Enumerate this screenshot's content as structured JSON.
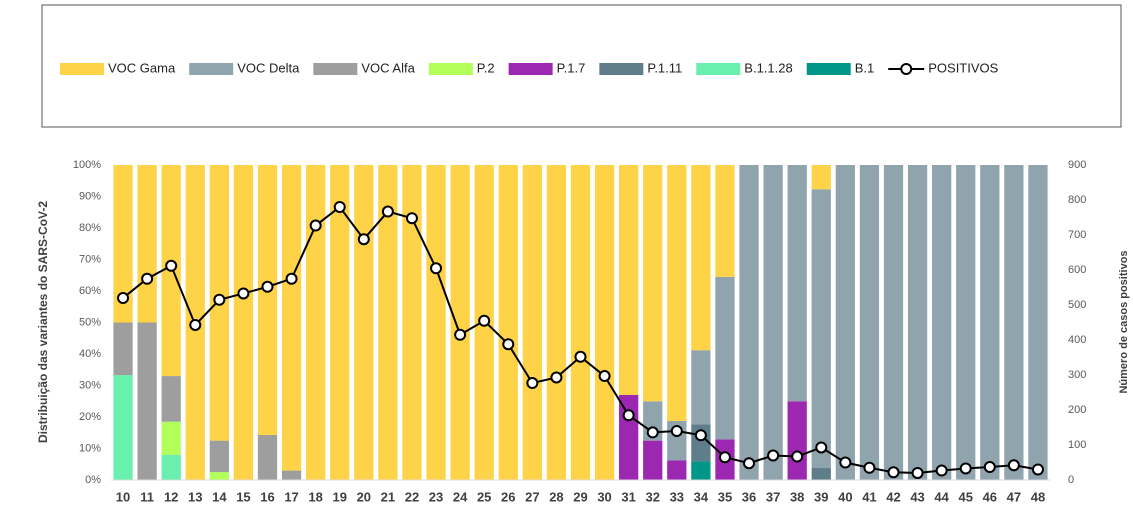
{
  "chart_data": {
    "type": "stacked_bar_line",
    "ylabel": "Distribuição das variantes do SARS-CoV-2",
    "y2label": "Número de casos positivos",
    "categories": [
      "10",
      "11",
      "12",
      "13",
      "14",
      "15",
      "16",
      "17",
      "18",
      "19",
      "20",
      "21",
      "22",
      "23",
      "24",
      "25",
      "26",
      "27",
      "28",
      "29",
      "30",
      "31",
      "32",
      "33",
      "34",
      "35",
      "36",
      "37",
      "38",
      "39",
      "40",
      "41",
      "42",
      "43",
      "44",
      "45",
      "46",
      "47",
      "48"
    ],
    "series": [
      {
        "name": "VOC Gama",
        "color": "#ffd347",
        "values": [
          50,
          50,
          67,
          100,
          87.5,
          100,
          85.7,
          97,
          100,
          100,
          100,
          100,
          100,
          100,
          100,
          100,
          100,
          100,
          100,
          100,
          100,
          73,
          75,
          81.25,
          58.8,
          35.5,
          0,
          0,
          0,
          7.7,
          0,
          0,
          0,
          0,
          0,
          0,
          0,
          0,
          0
        ]
      },
      {
        "name": "VOC Delta",
        "color": "#90a4ae",
        "values": [
          0,
          0,
          0,
          0,
          0,
          0,
          0,
          0,
          0,
          0,
          0,
          0,
          0,
          0,
          0,
          0,
          0,
          0,
          0,
          0,
          0,
          0,
          12.5,
          12.5,
          23.5,
          51.6,
          100,
          100,
          75,
          88.5,
          100,
          100,
          100,
          100,
          100,
          100,
          100,
          100,
          100
        ]
      },
      {
        "name": "VOC Alfa",
        "color": "#9e9e9e",
        "values": [
          16.7,
          50,
          14.5,
          0,
          10,
          0,
          14.3,
          3,
          0,
          0,
          0,
          0,
          0,
          0,
          0,
          0,
          0,
          0,
          0,
          0,
          0,
          0,
          0,
          0,
          0,
          0,
          0,
          0,
          0,
          0,
          0,
          0,
          0,
          0,
          0,
          0,
          0,
          0,
          0
        ]
      },
      {
        "name": "P.2",
        "color": "#b2ff59",
        "values": [
          0,
          0,
          10.5,
          0,
          2.5,
          0,
          0,
          0,
          0,
          0,
          0,
          0,
          0,
          0,
          0,
          0,
          0,
          0,
          0,
          0,
          0,
          0,
          0,
          0,
          0,
          0,
          0,
          0,
          0,
          0,
          0,
          0,
          0,
          0,
          0,
          0,
          0,
          0,
          0
        ]
      },
      {
        "name": "P.1.7",
        "color": "#9c27b0",
        "values": [
          0,
          0,
          0,
          0,
          0,
          0,
          0,
          0,
          0,
          0,
          0,
          0,
          0,
          0,
          0,
          0,
          0,
          0,
          0,
          0,
          0,
          27,
          12.5,
          6.25,
          0,
          12.9,
          0,
          0,
          25,
          0,
          0,
          0,
          0,
          0,
          0,
          0,
          0,
          0,
          0
        ]
      },
      {
        "name": "P.1.11",
        "color": "#607d8b",
        "values": [
          0,
          0,
          0,
          0,
          0,
          0,
          0,
          0,
          0,
          0,
          0,
          0,
          0,
          0,
          0,
          0,
          0,
          0,
          0,
          0,
          0,
          0,
          0,
          0,
          11.8,
          0,
          0,
          0,
          0,
          3.8,
          0,
          0,
          0,
          0,
          0,
          0,
          0,
          0,
          0
        ]
      },
      {
        "name": "B.1.1.28",
        "color": "#69f0ae",
        "values": [
          33.3,
          0,
          8,
          0,
          0,
          0,
          0,
          0,
          0,
          0,
          0,
          0,
          0,
          0,
          0,
          0,
          0,
          0,
          0,
          0,
          0,
          0,
          0,
          0,
          0,
          0,
          0,
          0,
          0,
          0,
          0,
          0,
          0,
          0,
          0,
          0,
          0,
          0,
          0
        ]
      },
      {
        "name": "B.1",
        "color": "#009688",
        "values": [
          0,
          0,
          0,
          0,
          0,
          0,
          0,
          0,
          0,
          0,
          0,
          0,
          0,
          0,
          0,
          0,
          0,
          0,
          0,
          0,
          0,
          0,
          0,
          0,
          5.9,
          0,
          0,
          0,
          0,
          0,
          0,
          0,
          0,
          0,
          0,
          0,
          0,
          0,
          0
        ]
      },
      {
        "name": "POSITIVOS",
        "color": "#000000",
        "axis": "y2",
        "values": [
          520,
          575,
          612,
          443,
          515,
          533,
          552,
          575,
          727,
          780,
          688,
          767,
          748,
          605,
          415,
          455,
          388,
          277,
          293,
          352,
          297,
          185,
          136,
          140,
          128,
          65,
          48,
          70,
          67,
          93,
          50,
          35,
          22,
          20,
          27,
          33,
          37,
          42,
          30
        ]
      }
    ],
    "ylim": [
      0,
      100
    ],
    "yticks": [
      {
        "value": 0,
        "label": "0%"
      },
      {
        "value": 10,
        "label": "10%"
      },
      {
        "value": 20,
        "label": "20%"
      },
      {
        "value": 30,
        "label": "30%"
      },
      {
        "value": 40,
        "label": "40%"
      },
      {
        "value": 50,
        "label": "50%"
      },
      {
        "value": 60,
        "label": "60%"
      },
      {
        "value": 70,
        "label": "70%"
      },
      {
        "value": 80,
        "label": "80%"
      },
      {
        "value": 90,
        "label": "90%"
      },
      {
        "value": 100,
        "label": "100%"
      }
    ],
    "y2lim": [
      0,
      900
    ],
    "y2ticks": [
      0,
      100,
      200,
      300,
      400,
      500,
      600,
      700,
      800,
      900
    ]
  }
}
